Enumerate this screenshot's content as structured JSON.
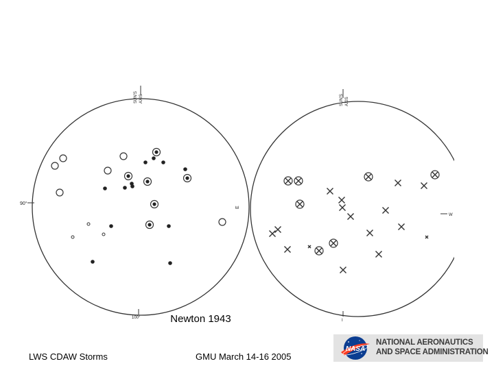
{
  "figure": {
    "caption": "Newton 1943",
    "left_disk": {
      "axis_label": [
        "SUN'S",
        "AXIS"
      ],
      "east_label": "90°",
      "west_label": "E",
      "bottom_label": "100°"
    },
    "right_disk": {
      "axis_label": [
        "SUN'S",
        "AXIS"
      ],
      "west_label": "W",
      "bottom_label": "I"
    }
  },
  "footer": {
    "left": "LWS CDAW Storms",
    "center": "GMU March 14-16 2005"
  },
  "logo": {
    "meatball_text": "NASA",
    "line1": "NATIONAL AERONAUTICS",
    "line2": "AND SPACE ADMINISTRATION",
    "colors": {
      "blue": "#0b3d91",
      "red": "#fc3d21",
      "text": "#3a3a3a",
      "background": "#e3e3e3"
    }
  }
}
